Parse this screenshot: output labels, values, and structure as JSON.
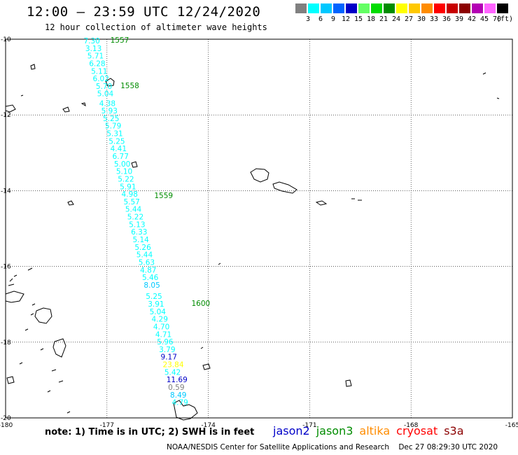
{
  "header": {
    "title": "12:00 – 23:59 UTC 12/24/2020",
    "subtitle": "12 hour collection of altimeter wave heights"
  },
  "color_scale": {
    "unit_label": "(ft)",
    "swatches": [
      {
        "label": "",
        "color": "#808080"
      },
      {
        "label": "3",
        "color": "#00ffff"
      },
      {
        "label": "6",
        "color": "#00c8ff"
      },
      {
        "label": "9",
        "color": "#0064ff"
      },
      {
        "label": "12",
        "color": "#0000c8"
      },
      {
        "label": "15",
        "color": "#64ff64"
      },
      {
        "label": "18",
        "color": "#00dc00"
      },
      {
        "label": "21",
        "color": "#008c00"
      },
      {
        "label": "24",
        "color": "#ffff00"
      },
      {
        "label": "27",
        "color": "#ffc800"
      },
      {
        "label": "30",
        "color": "#ff8c00"
      },
      {
        "label": "33",
        "color": "#ff0000"
      },
      {
        "label": "36",
        "color": "#c80000"
      },
      {
        "label": "39",
        "color": "#8c0000"
      },
      {
        "label": "42",
        "color": "#b400b4"
      },
      {
        "label": "45",
        "color": "#ff64ff"
      },
      {
        "label": "70",
        "color": "#000000"
      }
    ]
  },
  "map": {
    "lon_ticks": [
      "-180",
      "-177",
      "-174",
      "-171",
      "-168",
      "-165"
    ],
    "lat_ticks": [
      "-10",
      "-12",
      "-14",
      "-16",
      "-18",
      "-20"
    ],
    "time_labels": [
      {
        "text": "1557",
        "lon": -176.9,
        "lat": -10.0
      },
      {
        "text": "1558",
        "lon": -176.6,
        "lat": -11.2
      },
      {
        "text": "1559",
        "lon": -175.6,
        "lat": -14.1
      },
      {
        "text": "1600",
        "lon": -174.5,
        "lat": -16.95
      }
    ],
    "swh_points": [
      {
        "v": "7.30",
        "lon": -177.69,
        "lat": -10.0,
        "color": "#00ffff"
      },
      {
        "v": "3.13",
        "lon": -177.64,
        "lat": -10.2,
        "color": "#00ffff"
      },
      {
        "v": "5.71",
        "lon": -177.58,
        "lat": -10.4,
        "color": "#00ffff"
      },
      {
        "v": "6.28",
        "lon": -177.53,
        "lat": -10.6,
        "color": "#00ffff"
      },
      {
        "v": "5.11",
        "lon": -177.47,
        "lat": -10.8,
        "color": "#00ffff"
      },
      {
        "v": "6.02",
        "lon": -177.42,
        "lat": -11.0,
        "color": "#00ffff"
      },
      {
        "v": "5.70",
        "lon": -177.33,
        "lat": -11.2,
        "color": "#00ffff"
      },
      {
        "v": "5.04",
        "lon": -177.29,
        "lat": -11.4,
        "color": "#00ffff"
      },
      {
        "v": "4.38",
        "lon": -177.23,
        "lat": -11.65,
        "color": "#00ffff"
      },
      {
        "v": "5.93",
        "lon": -177.17,
        "lat": -11.85,
        "color": "#00ffff"
      },
      {
        "v": "5.25",
        "lon": -177.12,
        "lat": -12.05,
        "color": "#00ffff"
      },
      {
        "v": "5.79",
        "lon": -177.06,
        "lat": -12.25,
        "color": "#00ffff"
      },
      {
        "v": "5.31",
        "lon": -177.01,
        "lat": -12.45,
        "color": "#00ffff"
      },
      {
        "v": "5.25",
        "lon": -176.95,
        "lat": -12.65,
        "color": "#00ffff"
      },
      {
        "v": "4.41",
        "lon": -176.9,
        "lat": -12.85,
        "color": "#00ffff"
      },
      {
        "v": "6.77",
        "lon": -176.84,
        "lat": -13.05,
        "color": "#00ffff"
      },
      {
        "v": "5.00",
        "lon": -176.79,
        "lat": -13.25,
        "color": "#00ffff"
      },
      {
        "v": "5.10",
        "lon": -176.73,
        "lat": -13.45,
        "color": "#00ffff"
      },
      {
        "v": "5.22",
        "lon": -176.68,
        "lat": -13.65,
        "color": "#00ffff"
      },
      {
        "v": "5.91",
        "lon": -176.62,
        "lat": -13.85,
        "color": "#00ffff"
      },
      {
        "v": "4.98",
        "lon": -176.57,
        "lat": -14.05,
        "color": "#00ffff"
      },
      {
        "v": "5.57",
        "lon": -176.51,
        "lat": -14.25,
        "color": "#00ffff"
      },
      {
        "v": "5.44",
        "lon": -176.46,
        "lat": -14.45,
        "color": "#00ffff"
      },
      {
        "v": "5.22",
        "lon": -176.4,
        "lat": -14.65,
        "color": "#00ffff"
      },
      {
        "v": "5.13",
        "lon": -176.35,
        "lat": -14.85,
        "color": "#00ffff"
      },
      {
        "v": "6.33",
        "lon": -176.29,
        "lat": -15.05,
        "color": "#00ffff"
      },
      {
        "v": "5.14",
        "lon": -176.24,
        "lat": -15.25,
        "color": "#00ffff"
      },
      {
        "v": "5.26",
        "lon": -176.18,
        "lat": -15.45,
        "color": "#00ffff"
      },
      {
        "v": "5.44",
        "lon": -176.13,
        "lat": -15.65,
        "color": "#00ffff"
      },
      {
        "v": "5.63",
        "lon": -176.07,
        "lat": -15.85,
        "color": "#00ffff"
      },
      {
        "v": "4.87",
        "lon": -176.02,
        "lat": -16.05,
        "color": "#00ffff"
      },
      {
        "v": "5.46",
        "lon": -175.96,
        "lat": -16.25,
        "color": "#00ffff"
      },
      {
        "v": "8.05",
        "lon": -175.91,
        "lat": -16.45,
        "color": "#00c8ff"
      },
      {
        "v": "5.25",
        "lon": -175.85,
        "lat": -16.75,
        "color": "#00ffff"
      },
      {
        "v": "3.91",
        "lon": -175.79,
        "lat": -16.95,
        "color": "#00ffff"
      },
      {
        "v": "5.04",
        "lon": -175.74,
        "lat": -17.15,
        "color": "#00ffff"
      },
      {
        "v": "4.29",
        "lon": -175.68,
        "lat": -17.35,
        "color": "#00ffff"
      },
      {
        "v": "4.70",
        "lon": -175.63,
        "lat": -17.55,
        "color": "#00ffff"
      },
      {
        "v": "4.71",
        "lon": -175.57,
        "lat": -17.75,
        "color": "#00ffff"
      },
      {
        "v": "5.96",
        "lon": -175.52,
        "lat": -17.95,
        "color": "#00ffff"
      },
      {
        "v": "3.79",
        "lon": -175.46,
        "lat": -18.15,
        "color": "#00ffff"
      },
      {
        "v": "9.17",
        "lon": -175.41,
        "lat": -18.35,
        "color": "#0000c8"
      },
      {
        "v": "23.84",
        "lon": -175.35,
        "lat": -18.55,
        "color": "#ffff00"
      },
      {
        "v": "5.42",
        "lon": -175.3,
        "lat": -18.75,
        "color": "#00ffff"
      },
      {
        "v": "11.69",
        "lon": -175.24,
        "lat": -18.95,
        "color": "#0000c8"
      },
      {
        "v": "0.59",
        "lon": -175.19,
        "lat": -19.15,
        "color": "#808080"
      },
      {
        "v": "8.49",
        "lon": -175.13,
        "lat": -19.35,
        "color": "#00c8ff"
      },
      {
        "v": "4.79",
        "lon": -175.08,
        "lat": -19.55,
        "color": "#00ffff"
      }
    ]
  },
  "footer": {
    "note": "note: 1) Time is in UTC; 2) SWH is in feet",
    "satellites": [
      {
        "name": "jason2",
        "color": "#0000c8"
      },
      {
        "name": "jason3",
        "color": "#008c00"
      },
      {
        "name": "altika",
        "color": "#ff8c00"
      },
      {
        "name": "cryosat",
        "color": "#ff0000"
      },
      {
        "name": "s3a",
        "color": "#8c0000"
      }
    ],
    "credit": "NOAA/NESDIS Center for Satellite Applications and Research    Dec 27 08:29:30 UTC 2020"
  }
}
